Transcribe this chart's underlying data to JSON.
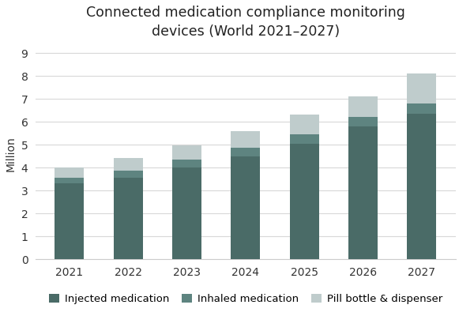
{
  "title": "Connected medication compliance monitoring\ndevices (World 2021–2027)",
  "ylabel": "Million",
  "years": [
    2021,
    2022,
    2023,
    2024,
    2025,
    2026,
    2027
  ],
  "injected": [
    3.3,
    3.55,
    4.0,
    4.5,
    5.05,
    5.8,
    6.35
  ],
  "inhaled": [
    0.25,
    0.3,
    0.35,
    0.35,
    0.4,
    0.4,
    0.45
  ],
  "pill": [
    0.45,
    0.55,
    0.6,
    0.75,
    0.85,
    0.9,
    1.3
  ],
  "color_injected": "#4a6b67",
  "color_inhaled": "#5e8480",
  "color_pill": "#bfcccc",
  "legend_labels": [
    "Injected medication",
    "Inhaled medication",
    "Pill bottle & dispenser"
  ],
  "ylim": [
    0,
    9.2
  ],
  "yticks": [
    0,
    1,
    2,
    3,
    4,
    5,
    6,
    7,
    8,
    9
  ],
  "background_color": "#ffffff",
  "grid_color": "#d8d8d8",
  "title_fontsize": 12.5,
  "axis_fontsize": 10,
  "legend_fontsize": 9.5,
  "bar_width": 0.5
}
